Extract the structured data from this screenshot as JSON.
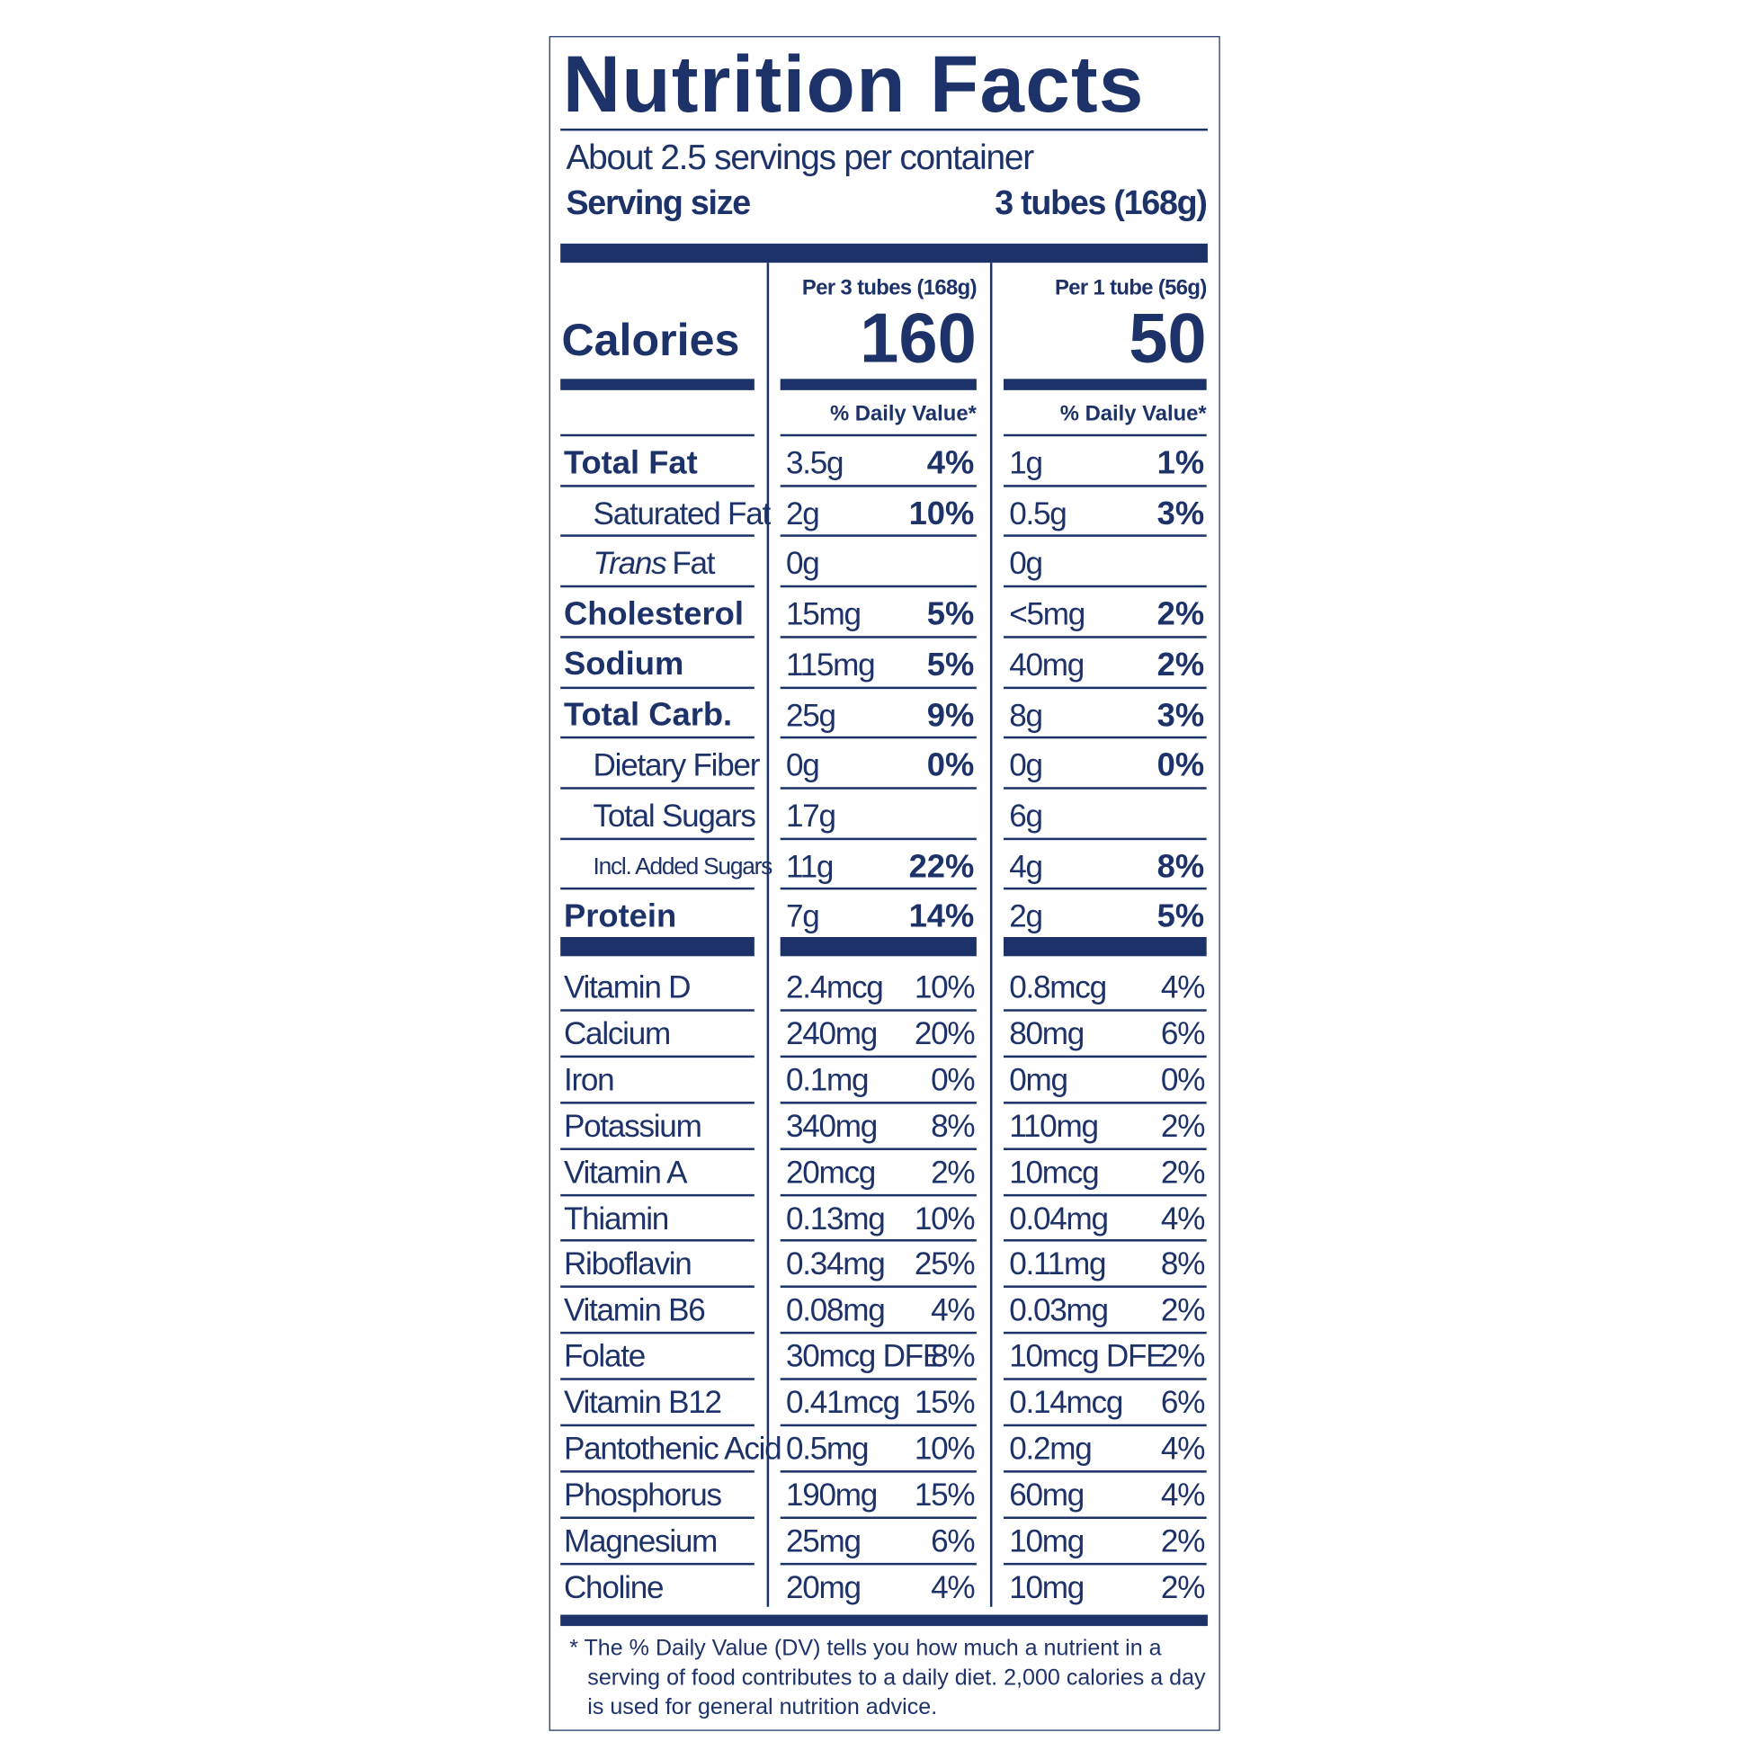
{
  "header": {
    "title": "Nutrition Facts",
    "servings": "About 2.5 servings per container",
    "serving_size_label": "Serving size",
    "serving_size_value": "3 tubes (168g)"
  },
  "calories": {
    "label": "Calories",
    "columns": [
      {
        "heading": "Per 3 tubes (168g)",
        "value": "160",
        "dv_heading": "% Daily Value*"
      },
      {
        "heading": "Per 1 tube (56g)",
        "value": "50",
        "dv_heading": "% Daily Value*"
      }
    ]
  },
  "nutrients": [
    {
      "name": "Total Fat",
      "style": "bold",
      "values": [
        [
          "3.5g",
          "4%"
        ],
        [
          "1g",
          "1%"
        ]
      ]
    },
    {
      "name": "Saturated Fat",
      "style": "indent",
      "values": [
        [
          "2g",
          "10%"
        ],
        [
          "0.5g",
          "3%"
        ]
      ]
    },
    {
      "name_italic": "Trans",
      "name": "Fat",
      "style": "indent",
      "values": [
        [
          "0g"
        ],
        [
          "0g"
        ]
      ]
    },
    {
      "name": "Cholesterol",
      "style": "bold",
      "values": [
        [
          "15mg",
          "5%"
        ],
        [
          "<5mg",
          "2%"
        ]
      ]
    },
    {
      "name": "Sodium",
      "style": "bold",
      "values": [
        [
          "115mg",
          "5%"
        ],
        [
          "40mg",
          "2%"
        ]
      ]
    },
    {
      "name": "Total Carb.",
      "style": "bold",
      "values": [
        [
          "25g",
          "9%"
        ],
        [
          "8g",
          "3%"
        ]
      ]
    },
    {
      "name": "Dietary Fiber",
      "style": "indent",
      "values": [
        [
          "0g",
          "0%"
        ],
        [
          "0g",
          "0%"
        ]
      ]
    },
    {
      "name": "Total Sugars",
      "style": "indent",
      "values": [
        [
          "17g"
        ],
        [
          "6g"
        ]
      ]
    },
    {
      "name": "Incl. Added Sugars",
      "style": "small-indent",
      "values": [
        [
          "11g",
          "22%"
        ],
        [
          "4g",
          "8%"
        ]
      ]
    },
    {
      "name": "Protein",
      "style": "bold",
      "values": [
        [
          "7g",
          "14%"
        ],
        [
          "2g",
          "5%"
        ]
      ]
    }
  ],
  "vitamins": [
    {
      "name": "Vitamin D",
      "values": [
        [
          "2.4mcg",
          "10%"
        ],
        [
          "0.8mcg",
          "4%"
        ]
      ]
    },
    {
      "name": "Calcium",
      "values": [
        [
          "240mg",
          "20%"
        ],
        [
          "80mg",
          "6%"
        ]
      ]
    },
    {
      "name": "Iron",
      "values": [
        [
          "0.1mg",
          "0%"
        ],
        [
          "0mg",
          "0%"
        ]
      ]
    },
    {
      "name": "Potassium",
      "values": [
        [
          "340mg",
          "8%"
        ],
        [
          "110mg",
          "2%"
        ]
      ]
    },
    {
      "name": "Vitamin A",
      "values": [
        [
          "20mcg",
          "2%"
        ],
        [
          "10mcg",
          "2%"
        ]
      ]
    },
    {
      "name": "Thiamin",
      "values": [
        [
          "0.13mg",
          "10%"
        ],
        [
          "0.04mg",
          "4%"
        ]
      ]
    },
    {
      "name": "Riboflavin",
      "values": [
        [
          "0.34mg",
          "25%"
        ],
        [
          "0.11mg",
          "8%"
        ]
      ]
    },
    {
      "name": "Vitamin B6",
      "values": [
        [
          "0.08mg",
          "4%"
        ],
        [
          "0.03mg",
          "2%"
        ]
      ]
    },
    {
      "name": "Folate",
      "values": [
        [
          "30mcg DFE",
          "8%"
        ],
        [
          "10mcg DFE",
          "2%"
        ]
      ]
    },
    {
      "name": "Vitamin B12",
      "values": [
        [
          "0.41mcg",
          "15%"
        ],
        [
          "0.14mcg",
          "6%"
        ]
      ]
    },
    {
      "name": "Pantothenic Acid",
      "values": [
        [
          "0.5mg",
          "10%"
        ],
        [
          "0.2mg",
          "4%"
        ]
      ]
    },
    {
      "name": "Phosphorus",
      "values": [
        [
          "190mg",
          "15%"
        ],
        [
          "60mg",
          "4%"
        ]
      ]
    },
    {
      "name": "Magnesium",
      "values": [
        [
          "25mg",
          "6%"
        ],
        [
          "10mg",
          "2%"
        ]
      ]
    },
    {
      "name": "Choline",
      "values": [
        [
          "20mg",
          "4%"
        ],
        [
          "10mg",
          "2%"
        ]
      ]
    }
  ],
  "footnote": [
    "* The % Daily Value (DV) tells you how much a nutrient in a",
    "serving of food contributes to a daily diet. 2,000 calories a day",
    "is used for general nutrition advice."
  ]
}
